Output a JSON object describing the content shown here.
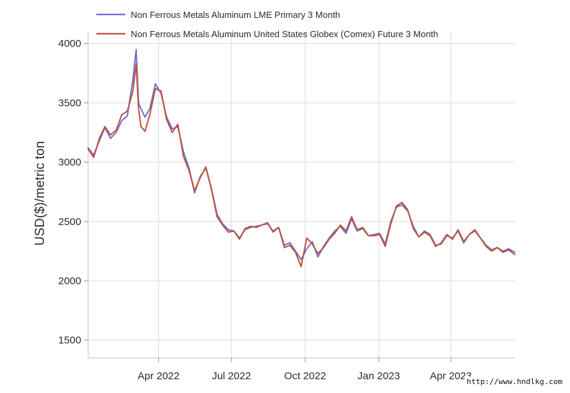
{
  "chart_data": {
    "type": "line",
    "title": "",
    "xlabel": "",
    "ylabel": "USD($)/metric ton",
    "x_ticks": [
      "Apr 2022",
      "Jul 2022",
      "Oct 2022",
      "Jan 2023",
      "Apr 2023"
    ],
    "y_ticks": [
      1500,
      2000,
      2500,
      3000,
      3500,
      4000
    ],
    "ylim": [
      1350,
      4100
    ],
    "xlim": [
      "2022-01-03",
      "2023-06-20"
    ],
    "grid": true,
    "legend_position": "top-left",
    "series": [
      {
        "name": "Non Ferrous Metals Aluminum LME Primary 3 Month",
        "color": "#6b72d6",
        "x": [
          "2022-01-03",
          "2022-01-10",
          "2022-01-17",
          "2022-01-24",
          "2022-01-31",
          "2022-02-07",
          "2022-02-14",
          "2022-02-21",
          "2022-02-28",
          "2022-03-04",
          "2022-03-07",
          "2022-03-10",
          "2022-03-15",
          "2022-03-21",
          "2022-03-28",
          "2022-04-04",
          "2022-04-11",
          "2022-04-18",
          "2022-04-25",
          "2022-05-02",
          "2022-05-09",
          "2022-05-16",
          "2022-05-23",
          "2022-05-30",
          "2022-06-06",
          "2022-06-13",
          "2022-06-20",
          "2022-06-27",
          "2022-07-04",
          "2022-07-11",
          "2022-07-18",
          "2022-07-25",
          "2022-08-01",
          "2022-08-08",
          "2022-08-15",
          "2022-08-22",
          "2022-08-29",
          "2022-09-05",
          "2022-09-12",
          "2022-09-19",
          "2022-09-26",
          "2022-10-03",
          "2022-10-10",
          "2022-10-17",
          "2022-10-24",
          "2022-10-31",
          "2022-11-07",
          "2022-11-14",
          "2022-11-21",
          "2022-11-28",
          "2022-12-05",
          "2022-12-12",
          "2022-12-19",
          "2022-12-26",
          "2023-01-02",
          "2023-01-09",
          "2023-01-16",
          "2023-01-23",
          "2023-01-30",
          "2023-02-06",
          "2023-02-13",
          "2023-02-20",
          "2023-02-27",
          "2023-03-06",
          "2023-03-13",
          "2023-03-20",
          "2023-03-27",
          "2023-04-03",
          "2023-04-10",
          "2023-04-17",
          "2023-04-24",
          "2023-05-01",
          "2023-05-08",
          "2023-05-15",
          "2023-05-22",
          "2023-05-29",
          "2023-06-05",
          "2023-06-12",
          "2023-06-20"
        ],
        "y": [
          3120,
          3060,
          3180,
          3290,
          3200,
          3250,
          3350,
          3390,
          3700,
          3950,
          3500,
          3450,
          3380,
          3450,
          3660,
          3580,
          3380,
          3280,
          3300,
          3090,
          2950,
          2740,
          2880,
          2950,
          2780,
          2560,
          2480,
          2430,
          2420,
          2360,
          2430,
          2450,
          2460,
          2470,
          2480,
          2420,
          2450,
          2300,
          2320,
          2250,
          2180,
          2270,
          2330,
          2200,
          2290,
          2360,
          2420,
          2460,
          2400,
          2520,
          2420,
          2440,
          2380,
          2390,
          2400,
          2310,
          2500,
          2620,
          2640,
          2590,
          2460,
          2370,
          2420,
          2390,
          2300,
          2310,
          2380,
          2360,
          2420,
          2320,
          2390,
          2420,
          2360,
          2300,
          2260,
          2280,
          2250,
          2270,
          2240
        ]
      },
      {
        "name": "Non Ferrous Metals Aluminum United States Globex (Comex) Future 3 Month",
        "color": "#c0523a",
        "x": [
          "2022-01-03",
          "2022-01-10",
          "2022-01-17",
          "2022-01-24",
          "2022-01-31",
          "2022-02-07",
          "2022-02-14",
          "2022-02-21",
          "2022-02-28",
          "2022-03-04",
          "2022-03-07",
          "2022-03-10",
          "2022-03-15",
          "2022-03-21",
          "2022-03-28",
          "2022-04-04",
          "2022-04-11",
          "2022-04-18",
          "2022-04-25",
          "2022-05-02",
          "2022-05-09",
          "2022-05-16",
          "2022-05-23",
          "2022-05-30",
          "2022-06-06",
          "2022-06-13",
          "2022-06-20",
          "2022-06-27",
          "2022-07-04",
          "2022-07-11",
          "2022-07-18",
          "2022-07-25",
          "2022-08-01",
          "2022-08-08",
          "2022-08-15",
          "2022-08-22",
          "2022-08-29",
          "2022-09-05",
          "2022-09-12",
          "2022-09-19",
          "2022-09-26",
          "2022-10-03",
          "2022-10-10",
          "2022-10-17",
          "2022-10-24",
          "2022-10-31",
          "2022-11-07",
          "2022-11-14",
          "2022-11-21",
          "2022-11-28",
          "2022-12-05",
          "2022-12-12",
          "2022-12-19",
          "2022-12-26",
          "2023-01-02",
          "2023-01-09",
          "2023-01-16",
          "2023-01-23",
          "2023-01-30",
          "2023-02-06",
          "2023-02-13",
          "2023-02-20",
          "2023-02-27",
          "2023-03-06",
          "2023-03-13",
          "2023-03-20",
          "2023-03-27",
          "2023-04-03",
          "2023-04-10",
          "2023-04-17",
          "2023-04-24",
          "2023-05-01",
          "2023-05-08",
          "2023-05-15",
          "2023-05-22",
          "2023-05-29",
          "2023-06-05",
          "2023-06-12",
          "2023-06-20"
        ],
        "y": [
          3110,
          3040,
          3200,
          3300,
          3230,
          3270,
          3400,
          3430,
          3600,
          3830,
          3450,
          3300,
          3260,
          3400,
          3620,
          3600,
          3360,
          3250,
          3320,
          3050,
          2930,
          2760,
          2870,
          2960,
          2770,
          2540,
          2470,
          2410,
          2420,
          2350,
          2440,
          2460,
          2450,
          2470,
          2490,
          2410,
          2450,
          2280,
          2300,
          2240,
          2120,
          2360,
          2310,
          2230,
          2280,
          2350,
          2400,
          2470,
          2420,
          2540,
          2430,
          2450,
          2380,
          2380,
          2390,
          2290,
          2480,
          2630,
          2660,
          2600,
          2440,
          2370,
          2410,
          2380,
          2290,
          2320,
          2390,
          2350,
          2430,
          2330,
          2390,
          2430,
          2360,
          2290,
          2250,
          2280,
          2240,
          2260,
          2220
        ]
      }
    ]
  },
  "watermark": "http://www.hndlkg.com"
}
